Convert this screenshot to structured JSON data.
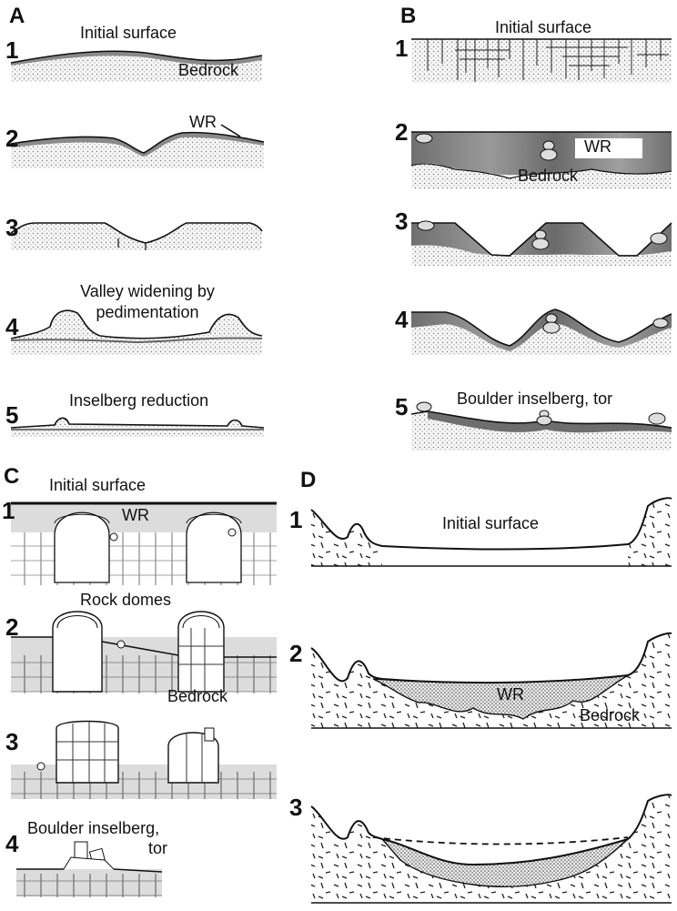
{
  "panels": {
    "A": {
      "letter": "A",
      "steps": [
        "1",
        "2",
        "3",
        "4",
        "5"
      ],
      "labels": {
        "initial_surface": "Initial surface",
        "bedrock": "Bedrock",
        "wr": "WR",
        "valley_widening_1": "Valley widening by",
        "valley_widening_2": "pedimentation",
        "inselberg_reduction": "Inselberg reduction"
      }
    },
    "B": {
      "letter": "B",
      "steps": [
        "1",
        "2",
        "3",
        "4",
        "5"
      ],
      "labels": {
        "initial_surface": "Initial surface",
        "wr": "WR",
        "bedrock": "Bedrock",
        "boulder_inselberg_tor": "Boulder inselberg, tor"
      }
    },
    "C": {
      "letter": "C",
      "steps": [
        "1",
        "2",
        "3",
        "4"
      ],
      "labels": {
        "initial_surface": "Initial surface",
        "wr": "WR",
        "rock_domes": "Rock domes",
        "bedrock": "Bedrock",
        "boulder_inselberg_1": "Boulder inselberg,",
        "boulder_inselberg_2": "tor"
      }
    },
    "D": {
      "letter": "D",
      "steps": [
        "1",
        "2",
        "3"
      ],
      "labels": {
        "initial_surface": "Initial surface",
        "wr": "WR",
        "bedrock": "Bedrock"
      }
    }
  },
  "colors": {
    "ink": "#111111",
    "weathered_dark": "#7a7a7a",
    "weathered_light": "#c9c9c9",
    "bedrock_stipple": "#efefef"
  }
}
